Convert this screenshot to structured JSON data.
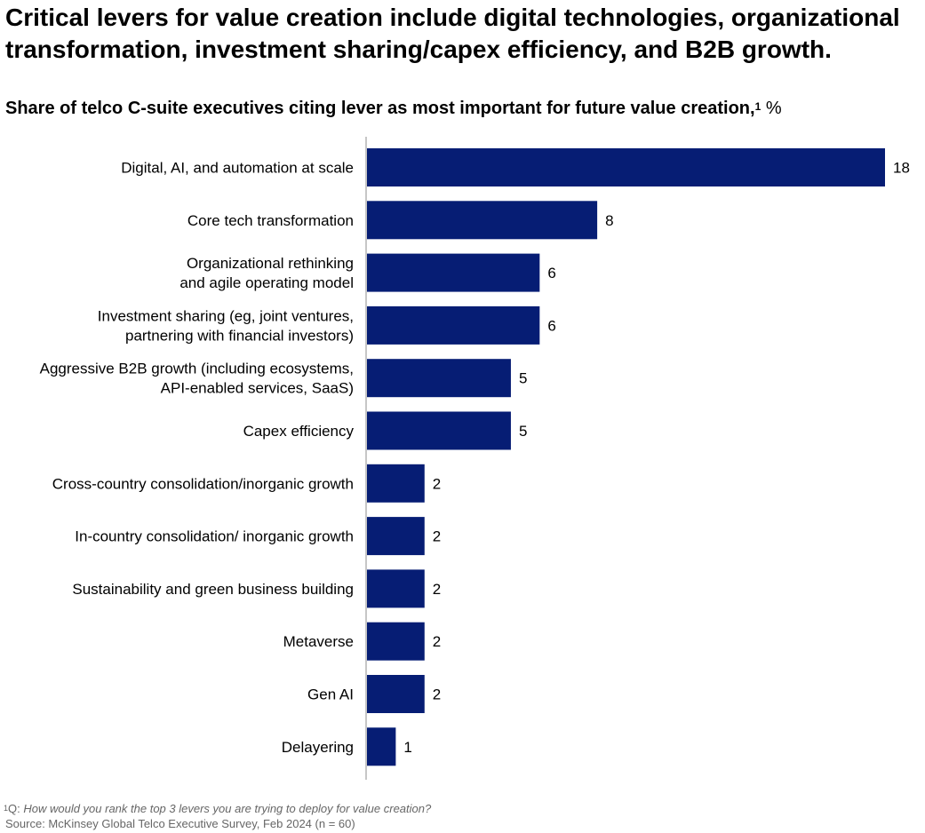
{
  "headline": "Critical levers for value creation include digital technologies, organizational transformation, investment sharing/capex efficiency, and B2B growth.",
  "subtitle": {
    "text": "Share of telco C-suite executives citing lever as most important for future value creation,",
    "footnote_mark": "1",
    "unit": "%"
  },
  "footnote": {
    "mark": "1",
    "prefix": "Q: ",
    "question": "How would you rank the top 3 levers you are trying to deploy for value creation?"
  },
  "source": "Source: McKinsey Global Telco Executive Survey, Feb 2024 (n = 60)",
  "colors": {
    "bar": "#061d74",
    "axis": "#b3b3b3",
    "text": "#000000",
    "footnote": "#666666"
  },
  "chart_data": {
    "type": "bar",
    "orientation": "horizontal",
    "categories": [
      [
        "Digital, AI, and automation at scale"
      ],
      [
        "Core tech transformation"
      ],
      [
        "Organizational rethinking",
        "and agile operating model"
      ],
      [
        "Investment sharing (eg, joint ventures,",
        "partnering with financial investors)"
      ],
      [
        "Aggressive B2B growth (including ecosystems,",
        "API-enabled services, SaaS)"
      ],
      [
        "Capex efficiency"
      ],
      [
        "Cross-country consolidation/inorganic growth"
      ],
      [
        "In-country consolidation/ inorganic growth"
      ],
      [
        "Sustainability and green business building"
      ],
      [
        "Metaverse"
      ],
      [
        "Gen AI"
      ],
      [
        "Delayering"
      ]
    ],
    "values": [
      18,
      8,
      6,
      6,
      5,
      5,
      2,
      2,
      2,
      2,
      2,
      1
    ],
    "data_labels": [
      "18",
      "8",
      "6",
      "6",
      "5",
      "5",
      "2",
      "2",
      "2",
      "2",
      "2",
      "1"
    ],
    "xlim": [
      0,
      18
    ],
    "grid": false,
    "legend": "none"
  }
}
